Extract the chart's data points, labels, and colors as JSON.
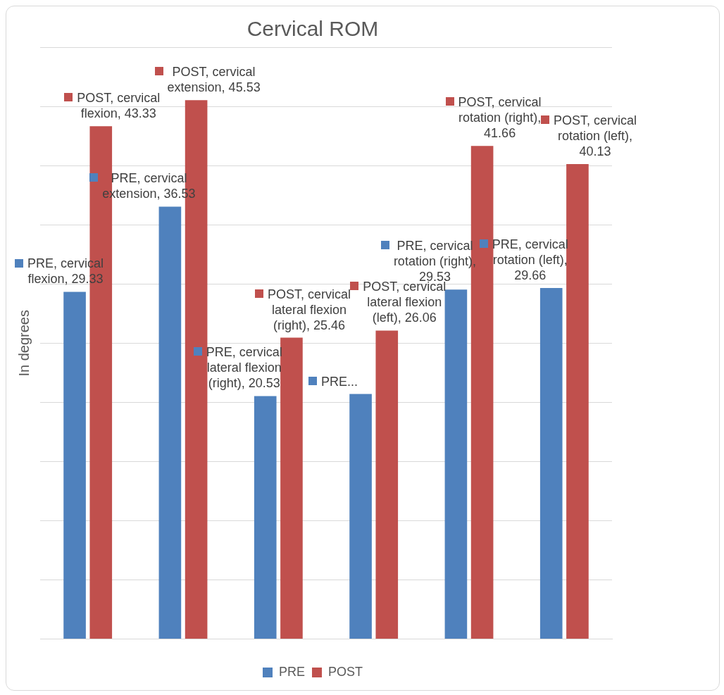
{
  "chart_data": {
    "type": "bar",
    "title": "Cervical ROM",
    "ylabel": "In degrees",
    "categories": [
      null,
      null,
      null,
      null,
      null,
      null
    ],
    "series": [
      {
        "name": "PRE",
        "color": "#4f81bd",
        "values": [
          29.33,
          36.53,
          20.53,
          20.7,
          29.53,
          29.66
        ],
        "value_labels": [
          "PRE, cervical flexion, 29.33",
          "PRE, cervical extension, 36.53",
          "PRE, cervical lateral flexion (right), 20.53",
          "PRE...",
          "PRE, cervical rotation (right), 29.53",
          "PRE, cervical rotation (left), 29.66"
        ]
      },
      {
        "name": "POST",
        "color": "#c0504d",
        "values": [
          43.33,
          45.53,
          25.46,
          26.06,
          41.66,
          40.13
        ],
        "value_labels": [
          "POST, cervical flexion, 43.33",
          "POST, cervical extension, 45.53",
          "POST, cervical lateral flexion (right), 25.46",
          "POST, cervical lateral flexion (left), 26.06",
          "POST, cervical rotation (right), 41.66",
          "POST, cervical rotation (left), 40.13"
        ]
      }
    ],
    "ylim": [
      0,
      50
    ],
    "yticks": [
      {
        "value": 0,
        "label": null
      },
      {
        "value": 5,
        "label": null
      },
      {
        "value": 10,
        "label": null
      },
      {
        "value": 15,
        "label": null
      },
      {
        "value": 20,
        "label": null
      },
      {
        "value": 25,
        "label": null
      },
      {
        "value": 30,
        "label": null
      },
      {
        "value": 35,
        "label": null
      },
      {
        "value": 40,
        "label": null
      },
      {
        "value": 45,
        "label": null
      },
      {
        "value": 50,
        "label": null
      }
    ],
    "grid": "y",
    "legend": "bottom"
  }
}
